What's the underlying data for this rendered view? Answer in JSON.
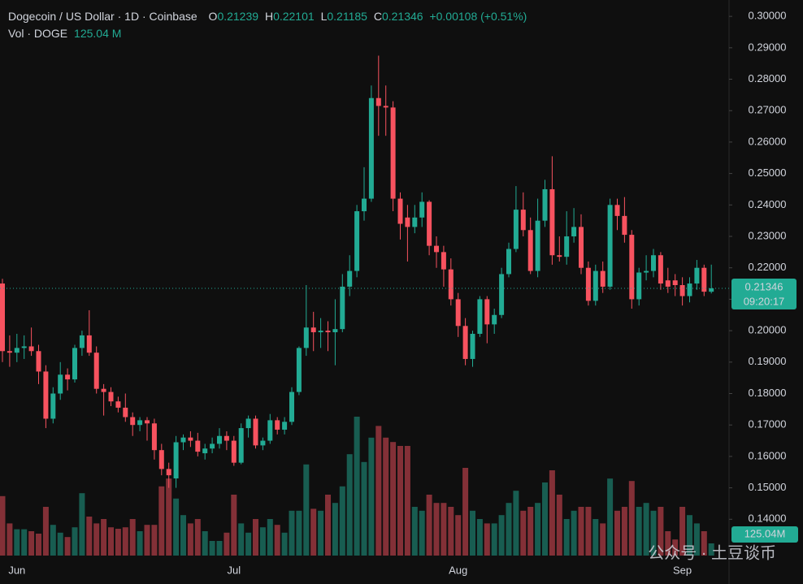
{
  "chart_data": {
    "type": "candlestick",
    "title": "Dogecoin / US Dollar · 1D · Coinbase",
    "ohlc_letters": [
      "O",
      "H",
      "L",
      "C"
    ],
    "change_label": "+0.00108 (+0.51%)",
    "volume_title": "Vol · DOGE",
    "volume_label": "125.04 M",
    "volume_axis_label": "125.04M",
    "countdown": "09:20:17",
    "watermark": "公众号 · 土豆谈币",
    "up_color": "#22ab94",
    "down_color": "#f7525f",
    "categories": [
      null,
      null,
      "Jun",
      null,
      null,
      null,
      null,
      null,
      null,
      null,
      null,
      null,
      null,
      null,
      null,
      null,
      null,
      null,
      null,
      null,
      null,
      null,
      null,
      null,
      null,
      null,
      null,
      null,
      null,
      null,
      null,
      null,
      "Jul",
      null,
      null,
      null,
      null,
      null,
      null,
      null,
      null,
      null,
      null,
      null,
      null,
      null,
      null,
      null,
      null,
      null,
      null,
      null,
      null,
      null,
      null,
      null,
      null,
      null,
      null,
      null,
      null,
      null,
      null,
      "Aug",
      null,
      null,
      null,
      null,
      null,
      null,
      null,
      null,
      null,
      null,
      null,
      null,
      null,
      null,
      null,
      null,
      null,
      null,
      null,
      null,
      null,
      null,
      null,
      null,
      null,
      null,
      null,
      null,
      null,
      null,
      "Sep",
      null,
      null,
      null,
      null
    ],
    "open": [
      0.215,
      0.1935,
      0.193,
      0.1945,
      0.195,
      0.1935,
      0.187,
      0.172,
      0.18,
      0.186,
      0.1845,
      0.1945,
      0.1985,
      0.193,
      0.1815,
      0.1805,
      0.1775,
      0.1755,
      0.1725,
      0.17,
      0.1715,
      0.1705,
      0.162,
      0.156,
      0.153,
      0.1645,
      0.166,
      0.165,
      0.161,
      0.1625,
      0.164,
      0.1665,
      0.165,
      0.158,
      0.169,
      0.172,
      0.1635,
      0.165,
      0.1715,
      0.1685,
      0.171,
      0.1805,
      0.1945,
      0.201,
      0.1995,
      0.2,
      0.1995,
      0.2005,
      0.214,
      0.219,
      0.238,
      0.242,
      0.274,
      0.2715,
      0.271,
      0.242,
      0.236,
      0.233,
      0.236,
      0.241,
      0.227,
      0.225,
      0.2195,
      0.21,
      0.2015,
      0.191,
      0.199,
      0.21,
      0.202,
      0.205,
      0.218,
      0.226,
      0.2385,
      0.232,
      0.219,
      0.235,
      0.245,
      0.224,
      0.2235,
      0.23,
      0.233,
      0.22,
      0.2095,
      0.219,
      0.214,
      0.24,
      0.2365,
      0.2305,
      0.21,
      0.2185,
      0.219,
      0.224,
      0.216,
      0.216,
      0.2145,
      0.211,
      0.215,
      0.22,
      0.21239
    ],
    "high": [
      0.2165,
      0.1985,
      0.199,
      0.1985,
      0.201,
      0.1955,
      0.189,
      0.182,
      0.19,
      0.188,
      0.1955,
      0.2,
      0.2065,
      0.195,
      0.183,
      0.182,
      0.179,
      0.18,
      0.174,
      0.1725,
      0.1725,
      0.172,
      0.164,
      0.158,
      0.1665,
      0.167,
      0.168,
      0.1675,
      0.164,
      0.166,
      0.169,
      0.168,
      0.1665,
      0.1705,
      0.173,
      0.173,
      0.166,
      0.1735,
      0.1725,
      0.1725,
      0.182,
      0.195,
      0.2145,
      0.206,
      0.204,
      0.203,
      0.21,
      0.218,
      0.224,
      0.24,
      0.252,
      0.278,
      0.2875,
      0.278,
      0.273,
      0.244,
      0.24,
      0.24,
      0.244,
      0.2415,
      0.23,
      0.227,
      0.223,
      0.212,
      0.204,
      0.2,
      0.211,
      0.211,
      0.207,
      0.22,
      0.228,
      0.246,
      0.244,
      0.236,
      0.242,
      0.248,
      0.2555,
      0.23,
      0.238,
      0.239,
      0.237,
      0.222,
      0.221,
      0.222,
      0.242,
      0.242,
      0.2425,
      0.232,
      0.22,
      0.224,
      0.226,
      0.225,
      0.22,
      0.218,
      0.217,
      0.217,
      0.2225,
      0.221,
      0.22101
    ],
    "low": [
      0.19,
      0.1885,
      0.19,
      0.191,
      0.192,
      0.183,
      0.169,
      0.1705,
      0.178,
      0.181,
      0.1835,
      0.192,
      0.192,
      0.18,
      0.173,
      0.176,
      0.174,
      0.171,
      0.1665,
      0.168,
      0.165,
      0.159,
      0.154,
      0.15,
      0.15,
      0.162,
      0.163,
      0.16,
      0.159,
      0.161,
      0.1625,
      0.162,
      0.157,
      0.1575,
      0.166,
      0.1625,
      0.162,
      0.164,
      0.167,
      0.167,
      0.17,
      0.1795,
      0.192,
      0.1935,
      0.1945,
      0.1935,
      0.189,
      0.1995,
      0.211,
      0.217,
      0.235,
      0.241,
      0.262,
      0.262,
      0.238,
      0.229,
      0.222,
      0.231,
      0.233,
      0.224,
      0.22,
      0.214,
      0.208,
      0.198,
      0.189,
      0.1885,
      0.198,
      0.196,
      0.199,
      0.204,
      0.217,
      0.225,
      0.23,
      0.218,
      0.217,
      0.233,
      0.221,
      0.222,
      0.221,
      0.228,
      0.218,
      0.208,
      0.208,
      0.212,
      0.213,
      0.232,
      0.228,
      0.207,
      0.208,
      0.216,
      0.217,
      0.213,
      0.212,
      0.211,
      0.208,
      0.209,
      0.213,
      0.211,
      0.21185
    ],
    "close": [
      0.1935,
      0.193,
      0.1945,
      0.195,
      0.1935,
      0.187,
      0.172,
      0.18,
      0.186,
      0.1845,
      0.1945,
      0.1985,
      0.193,
      0.1815,
      0.1805,
      0.1775,
      0.1755,
      0.1725,
      0.17,
      0.1715,
      0.1705,
      0.162,
      0.156,
      0.154,
      0.1645,
      0.166,
      0.165,
      0.1615,
      0.1625,
      0.164,
      0.1665,
      0.165,
      0.158,
      0.169,
      0.172,
      0.1635,
      0.165,
      0.1715,
      0.1685,
      0.171,
      0.1805,
      0.1945,
      0.201,
      0.1995,
      0.2,
      0.1995,
      0.2005,
      0.214,
      0.219,
      0.238,
      0.242,
      0.274,
      0.2715,
      0.271,
      0.242,
      0.234,
      0.233,
      0.236,
      0.241,
      0.227,
      0.225,
      0.2195,
      0.21,
      0.2015,
      0.191,
      0.199,
      0.21,
      0.202,
      0.205,
      0.218,
      0.226,
      0.2385,
      0.232,
      0.219,
      0.235,
      0.245,
      0.224,
      0.2235,
      0.23,
      0.233,
      0.22,
      0.2095,
      0.219,
      0.214,
      0.24,
      0.2365,
      0.2305,
      0.21,
      0.2185,
      0.219,
      0.224,
      0.215,
      0.214,
      0.2145,
      0.211,
      0.215,
      0.22,
      0.2124,
      0.21346
    ],
    "volume": [
      610,
      330,
      270,
      270,
      250,
      225,
      500,
      315,
      235,
      190,
      290,
      640,
      400,
      330,
      375,
      290,
      275,
      290,
      375,
      250,
      315,
      315,
      710,
      790,
      585,
      415,
      330,
      375,
      250,
      150,
      150,
      235,
      625,
      330,
      235,
      375,
      290,
      375,
      315,
      235,
      460,
      460,
      935,
      480,
      460,
      625,
      540,
      710,
      1040,
      1425,
      960,
      1210,
      1330,
      1210,
      1165,
      1125,
      1125,
      500,
      460,
      625,
      540,
      540,
      500,
      415,
      900,
      460,
      375,
      330,
      330,
      415,
      540,
      665,
      460,
      500,
      540,
      750,
      875,
      625,
      375,
      460,
      500,
      500,
      375,
      330,
      790,
      460,
      500,
      765,
      500,
      540,
      460,
      500,
      250,
      165,
      500,
      415,
      330,
      250,
      125.04
    ],
    "ylim": [
      0.1269,
      0.3052
    ],
    "yticks": [
      {
        "value": 0.3,
        "label": "0.30000"
      },
      {
        "value": 0.29,
        "label": "0.29000"
      },
      {
        "value": 0.28,
        "label": "0.28000"
      },
      {
        "value": 0.27,
        "label": "0.27000"
      },
      {
        "value": 0.26,
        "label": "0.26000"
      },
      {
        "value": 0.25,
        "label": "0.25000"
      },
      {
        "value": 0.24,
        "label": "0.24000"
      },
      {
        "value": 0.23,
        "label": "0.23000"
      },
      {
        "value": 0.22,
        "label": "0.22000"
      },
      {
        "value": 0.21,
        "label": "0.21000"
      },
      {
        "value": 0.2,
        "label": "0.20000"
      },
      {
        "value": 0.19,
        "label": "0.19000"
      },
      {
        "value": 0.18,
        "label": "0.18000"
      },
      {
        "value": 0.17,
        "label": "0.17000"
      },
      {
        "value": 0.16,
        "label": "0.16000"
      },
      {
        "value": 0.15,
        "label": "0.15000"
      },
      {
        "value": 0.14,
        "label": "0.14000"
      }
    ]
  }
}
